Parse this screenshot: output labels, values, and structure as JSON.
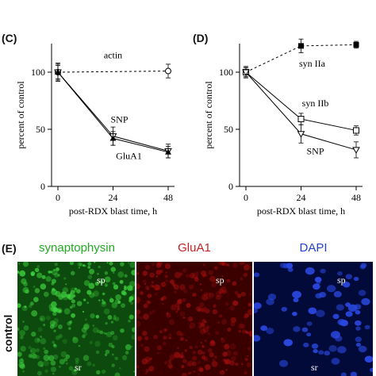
{
  "panels": {
    "C": "(C)",
    "D": "(D)",
    "E": "(E)"
  },
  "chart_data": [
    {
      "type": "line",
      "panel": "(C)",
      "xlabel": "post-RDX blast time, h",
      "ylabel": "percent of control",
      "x": [
        0,
        24,
        48
      ],
      "xlim": [
        0,
        48
      ],
      "ylim": [
        0,
        125
      ],
      "xticks": [
        "0",
        "24",
        "48"
      ],
      "yticks": [
        "0",
        "50",
        "100"
      ],
      "grid": false,
      "series": [
        {
          "name": "actin",
          "values": [
            100,
            null,
            101
          ],
          "style": "dashed",
          "marker": "open-circle",
          "errors": [
            8,
            null,
            6
          ]
        },
        {
          "name": "SNP",
          "values": [
            100,
            44,
            31
          ],
          "style": "solid",
          "marker": "open-triangle",
          "errors": [
            7,
            8,
            6
          ]
        },
        {
          "name": "GluA1",
          "values": [
            100,
            42,
            30
          ],
          "style": "solid",
          "marker": "filled-triangle",
          "errors": [
            6,
            6,
            5
          ]
        }
      ]
    },
    {
      "type": "line",
      "panel": "(D)",
      "xlabel": "post-RDX blast time, h",
      "ylabel": "percent of control",
      "x": [
        0,
        24,
        48
      ],
      "xlim": [
        0,
        48
      ],
      "ylim": [
        0,
        125
      ],
      "xticks": [
        "0",
        "24",
        "48"
      ],
      "yticks": [
        "0",
        "50",
        "100"
      ],
      "grid": false,
      "series": [
        {
          "name": "syn IIa",
          "values": [
            100,
            123,
            124
          ],
          "style": "dashed",
          "marker": "filled-square",
          "errors": [
            4,
            6,
            3
          ]
        },
        {
          "name": "syn IIb",
          "values": [
            100,
            59,
            49
          ],
          "style": "solid",
          "marker": "open-square",
          "errors": [
            4,
            5,
            4
          ]
        },
        {
          "name": "SNP",
          "values": [
            100,
            46,
            32
          ],
          "style": "solid",
          "marker": "open-triangle",
          "errors": [
            5,
            8,
            7
          ]
        }
      ]
    }
  ],
  "micrographs": {
    "titles": [
      "synaptophysin",
      "GluA1",
      "DAPI"
    ],
    "title_colors": [
      "#22aa22",
      "#cc2222",
      "#2244cc"
    ],
    "image_colors": [
      "#1f8a1f",
      "#7a0a0a",
      "#0a1a8a"
    ],
    "labels_sp": [
      "sp",
      "sp",
      "sp"
    ],
    "labels_sr": [
      "sr",
      "",
      "sr"
    ],
    "row_label": "control"
  }
}
